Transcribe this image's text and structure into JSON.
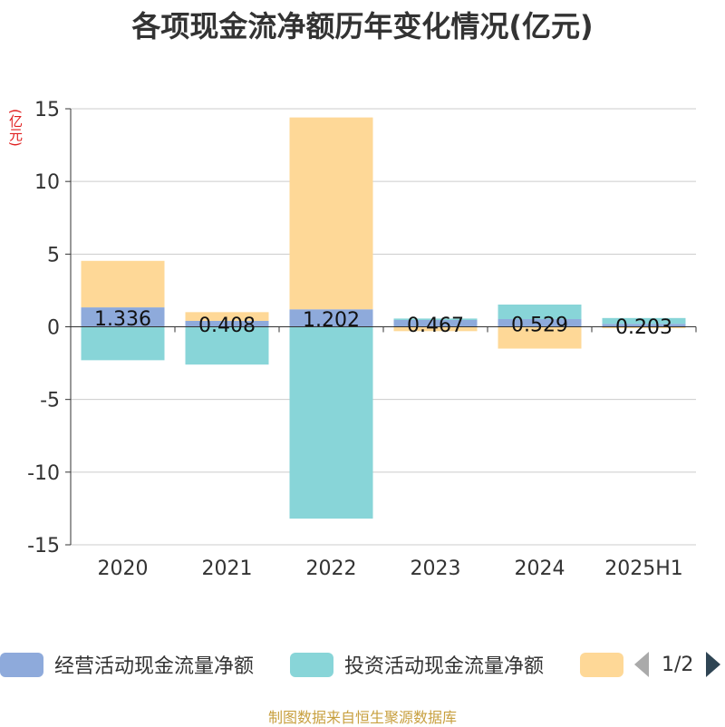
{
  "chart_data": {
    "type": "bar",
    "title": "各项现金流净额历年变化情况(亿元)",
    "unit_label": "(亿元)",
    "categories": [
      "2020",
      "2021",
      "2022",
      "2023",
      "2024",
      "2025H1"
    ],
    "ylim": [
      -15,
      15
    ],
    "yticks": [
      15,
      10,
      5,
      0,
      -5,
      -10,
      -15
    ],
    "grid": true,
    "legend_position": "bottom",
    "series": [
      {
        "name": "经营活动现金流量净额",
        "color": "#8eaadb",
        "values": [
          1.336,
          0.408,
          1.202,
          0.467,
          0.529,
          0.203
        ],
        "labels": [
          "1.336",
          "0.408",
          "1.202",
          "0.467",
          "0.529",
          "0.203"
        ]
      },
      {
        "name": "投资活动现金流量净额",
        "color": "#88d5d8",
        "values": [
          -2.3,
          -2.6,
          -13.2,
          0.1,
          1.0,
          0.4
        ]
      },
      {
        "name": "",
        "color": "#fed897",
        "values": [
          3.2,
          0.6,
          13.2,
          -0.3,
          -1.5,
          -0.1
        ]
      }
    ]
  },
  "legend": {
    "items": [
      {
        "label": "经营活动现金流量净额",
        "color": "#8eaadb"
      },
      {
        "label": "投资活动现金流量净额",
        "color": "#88d5d8"
      },
      {
        "label": "",
        "color": "#fed897"
      }
    ],
    "page_indicator": "1/2"
  },
  "source_text": "制图数据来自恒生聚源数据库"
}
